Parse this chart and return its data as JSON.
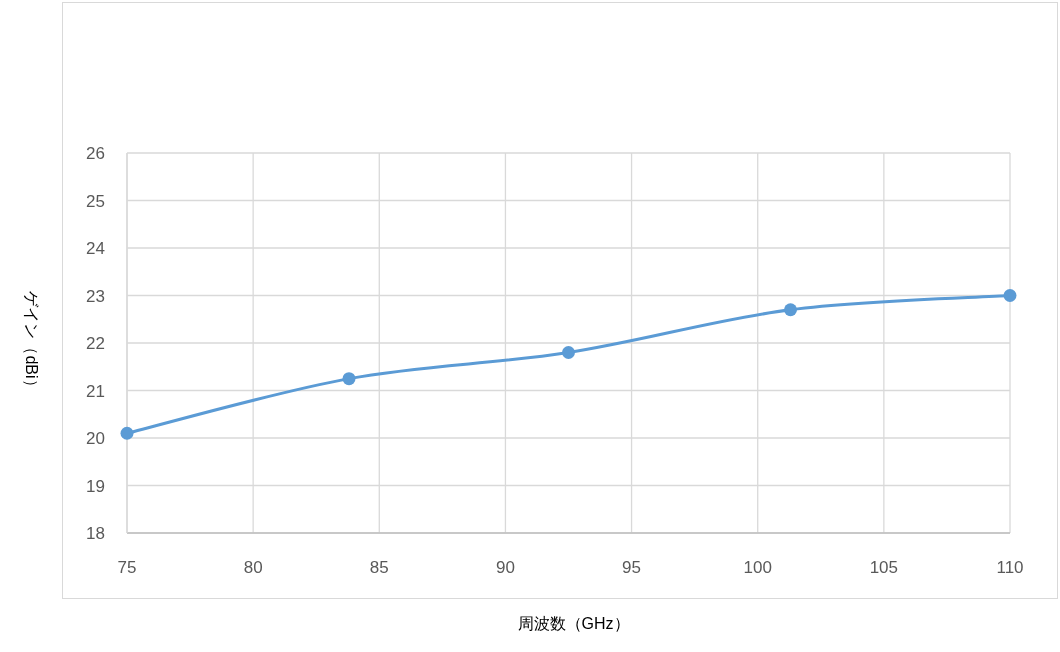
{
  "chart_data": {
    "type": "line",
    "xlabel": "周波数（GHz）",
    "ylabel": "ゲイン（dBi）",
    "x": [
      75,
      83.8,
      92.5,
      101.3,
      110
    ],
    "series": [
      {
        "color": "#5b9bd5",
        "values": [
          20.1,
          21.25,
          21.8,
          22.7,
          23.0
        ]
      }
    ],
    "xlim": [
      75,
      110
    ],
    "xticks": [
      75,
      80,
      85,
      90,
      95,
      100,
      105,
      110
    ],
    "ylim": [
      18,
      26
    ],
    "yticks": [
      18,
      19,
      20,
      21,
      22,
      23,
      24,
      25,
      26
    ],
    "grid": true,
    "marker": "circle",
    "line_style": "solid"
  }
}
